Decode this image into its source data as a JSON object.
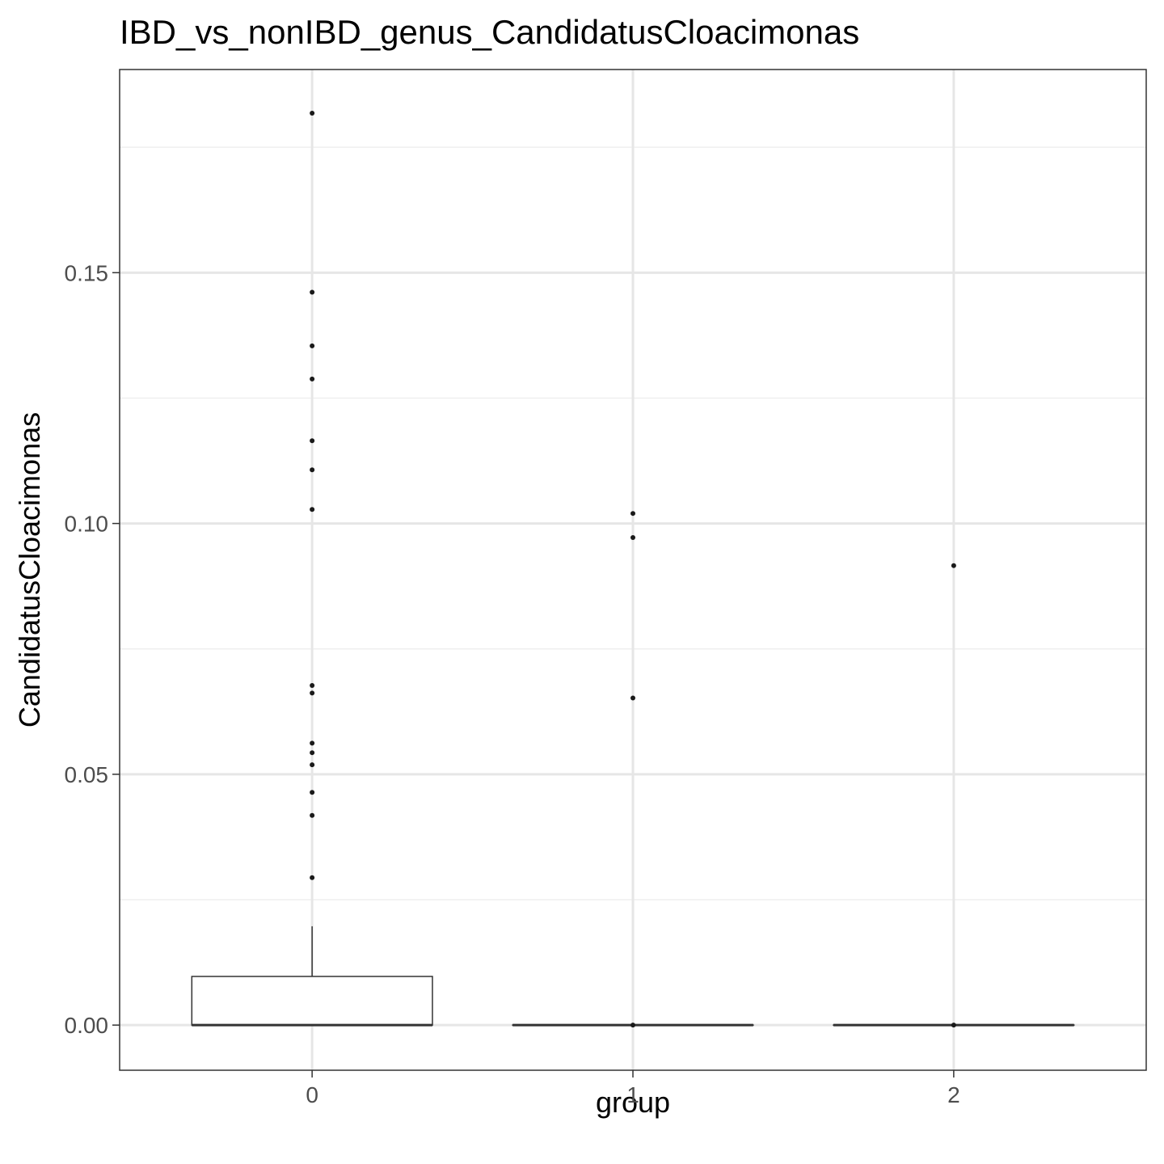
{
  "chart_data": {
    "type": "boxplot",
    "title": "IBD_vs_nonIBD_genus_CandidatusCloacimonas",
    "xlabel": "group",
    "ylabel": "CandidatusCloacimonas",
    "categories": [
      "0",
      "1",
      "2"
    ],
    "ylim": [
      -0.009,
      0.1905
    ],
    "yticks": [
      "0.00",
      "0.05",
      "0.10",
      "0.15"
    ],
    "ytick_values": [
      0,
      0.05,
      0.1,
      0.15
    ],
    "grid": true,
    "boxes": [
      {
        "group": "0",
        "min": 0,
        "q1": 0,
        "median": 0,
        "q3": 0.0097,
        "whisker_high": 0.0197,
        "outliers": [
          0.1818,
          0.1461,
          0.1354,
          0.1288,
          0.1165,
          0.1107,
          0.1028,
          0.0677,
          0.0662,
          0.0562,
          0.0543,
          0.0519,
          0.0464,
          0.0418,
          0.0294
        ]
      },
      {
        "group": "1",
        "min": 0,
        "q1": 0,
        "median": 0,
        "q3": 0,
        "whisker_high": 0,
        "outliers": [
          0.102,
          0.0972,
          0.0652,
          0.0
        ]
      },
      {
        "group": "2",
        "min": 0,
        "q1": 0,
        "median": 0,
        "q3": 0,
        "whisker_high": 0,
        "outliers": [
          0.0916,
          0.0
        ]
      }
    ],
    "colors": {
      "box_line": "#333333",
      "point": "#1a1a1a",
      "grid_major": "#e6e6e6",
      "grid_minor": "#efefef",
      "panel_border": "#333333"
    }
  }
}
